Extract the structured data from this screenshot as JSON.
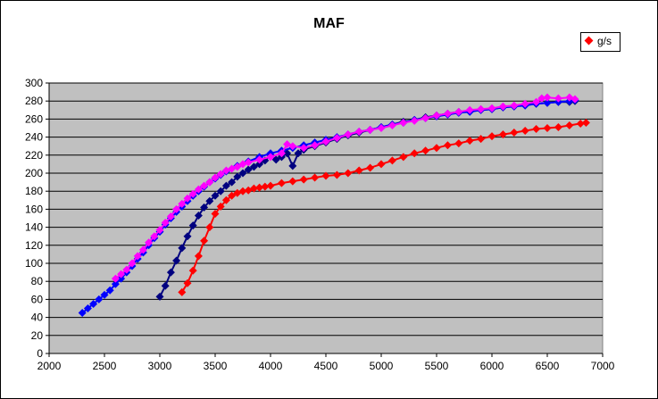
{
  "chart_data": {
    "type": "scatter",
    "title": "MAF",
    "legend": {
      "label": "g/s",
      "color": "#ff0000",
      "placement": "top-right"
    },
    "xlim": [
      2000,
      7000
    ],
    "ylim": [
      0,
      300
    ],
    "xticks": [
      "2000",
      "2500",
      "3000",
      "3500",
      "4000",
      "4500",
      "5000",
      "5500",
      "6000",
      "6500",
      "7000"
    ],
    "yticks": [
      "0",
      "20",
      "40",
      "60",
      "80",
      "100",
      "120",
      "140",
      "160",
      "180",
      "200",
      "220",
      "240",
      "260",
      "280",
      "300"
    ],
    "grid": true,
    "plot_background": "#c0c0c0",
    "series": [
      {
        "color": "#ff0000",
        "points": [
          [
            3200,
            68
          ],
          [
            3250,
            78
          ],
          [
            3300,
            92
          ],
          [
            3350,
            108
          ],
          [
            3400,
            125
          ],
          [
            3450,
            140
          ],
          [
            3500,
            155
          ],
          [
            3550,
            163
          ],
          [
            3600,
            170
          ],
          [
            3650,
            175
          ],
          [
            3700,
            178
          ],
          [
            3750,
            180
          ],
          [
            3800,
            181
          ],
          [
            3850,
            183
          ],
          [
            3900,
            184
          ],
          [
            3950,
            185
          ],
          [
            4000,
            186
          ],
          [
            4100,
            189
          ],
          [
            4200,
            191
          ],
          [
            4300,
            193
          ],
          [
            4400,
            195
          ],
          [
            4500,
            197
          ],
          [
            4600,
            198
          ],
          [
            4700,
            200
          ],
          [
            4800,
            203
          ],
          [
            4900,
            206
          ],
          [
            5000,
            210
          ],
          [
            5100,
            214
          ],
          [
            5200,
            218
          ],
          [
            5300,
            222
          ],
          [
            5400,
            225
          ],
          [
            5500,
            228
          ],
          [
            5600,
            231
          ],
          [
            5700,
            233
          ],
          [
            5800,
            236
          ],
          [
            5900,
            238
          ],
          [
            6000,
            241
          ],
          [
            6100,
            243
          ],
          [
            6200,
            245
          ],
          [
            6300,
            247
          ],
          [
            6400,
            249
          ],
          [
            6500,
            250
          ],
          [
            6600,
            251
          ],
          [
            6700,
            253
          ],
          [
            6800,
            255
          ],
          [
            6850,
            256
          ]
        ]
      },
      {
        "color": "#000080",
        "points": [
          [
            3000,
            63
          ],
          [
            3050,
            75
          ],
          [
            3100,
            90
          ],
          [
            3150,
            103
          ],
          [
            3200,
            117
          ],
          [
            3250,
            130
          ],
          [
            3300,
            142
          ],
          [
            3350,
            153
          ],
          [
            3400,
            162
          ],
          [
            3450,
            169
          ],
          [
            3500,
            175
          ],
          [
            3550,
            180
          ],
          [
            3600,
            186
          ],
          [
            3650,
            190
          ],
          [
            3700,
            196
          ],
          [
            3750,
            200
          ],
          [
            3800,
            204
          ],
          [
            3850,
            207
          ],
          [
            3900,
            210
          ],
          [
            3950,
            214
          ],
          [
            4000,
            220
          ],
          [
            4050,
            215
          ],
          [
            4100,
            218
          ],
          [
            4150,
            222
          ],
          [
            4200,
            208
          ],
          [
            4250,
            222
          ],
          [
            4300,
            226
          ],
          [
            4400,
            230
          ],
          [
            4500,
            234
          ],
          [
            4600,
            238
          ],
          [
            4700,
            242
          ],
          [
            4800,
            245
          ],
          [
            4900,
            248
          ],
          [
            5000,
            251
          ],
          [
            5100,
            254
          ],
          [
            5200,
            257
          ],
          [
            5300,
            259
          ],
          [
            5400,
            262
          ],
          [
            5500,
            264
          ],
          [
            5600,
            266
          ],
          [
            5700,
            268
          ],
          [
            5800,
            269
          ],
          [
            5900,
            270
          ],
          [
            6000,
            271
          ],
          [
            6100,
            273
          ],
          [
            6200,
            274
          ],
          [
            6300,
            276
          ],
          [
            6400,
            277
          ],
          [
            6500,
            278
          ],
          [
            6600,
            279
          ],
          [
            6700,
            279
          ],
          [
            6750,
            280
          ]
        ]
      },
      {
        "color": "#0000ff",
        "points": [
          [
            2300,
            45
          ],
          [
            2350,
            50
          ],
          [
            2400,
            55
          ],
          [
            2450,
            60
          ],
          [
            2500,
            65
          ],
          [
            2550,
            70
          ],
          [
            2600,
            77
          ],
          [
            2650,
            83
          ],
          [
            2700,
            90
          ],
          [
            2750,
            97
          ],
          [
            2800,
            105
          ],
          [
            2850,
            112
          ],
          [
            2900,
            120
          ],
          [
            2950,
            128
          ],
          [
            3000,
            135
          ],
          [
            3050,
            143
          ],
          [
            3100,
            150
          ],
          [
            3150,
            157
          ],
          [
            3200,
            163
          ],
          [
            3250,
            169
          ],
          [
            3300,
            175
          ],
          [
            3350,
            180
          ],
          [
            3400,
            185
          ],
          [
            3450,
            190
          ],
          [
            3500,
            194
          ],
          [
            3550,
            198
          ],
          [
            3600,
            202
          ],
          [
            3700,
            208
          ],
          [
            3800,
            213
          ],
          [
            3900,
            218
          ],
          [
            4000,
            222
          ],
          [
            4100,
            225
          ],
          [
            4200,
            228
          ],
          [
            4300,
            231
          ],
          [
            4400,
            234
          ],
          [
            4500,
            237
          ],
          [
            4600,
            240
          ],
          [
            4700,
            243
          ],
          [
            4800,
            246
          ],
          [
            4900,
            248
          ],
          [
            5000,
            251
          ],
          [
            5100,
            254
          ],
          [
            5200,
            256
          ],
          [
            5300,
            259
          ],
          [
            5400,
            261
          ],
          [
            5500,
            263
          ],
          [
            5600,
            265
          ],
          [
            5700,
            267
          ],
          [
            5800,
            268
          ],
          [
            5900,
            270
          ],
          [
            6000,
            271
          ],
          [
            6100,
            273
          ],
          [
            6200,
            274
          ],
          [
            6300,
            275
          ],
          [
            6400,
            277
          ],
          [
            6500,
            278
          ],
          [
            6600,
            279
          ],
          [
            6700,
            280
          ],
          [
            6750,
            281
          ]
        ]
      },
      {
        "color": "#ff00ff",
        "points": [
          [
            2600,
            83
          ],
          [
            2650,
            88
          ],
          [
            2700,
            93
          ],
          [
            2750,
            100
          ],
          [
            2800,
            108
          ],
          [
            2850,
            115
          ],
          [
            2900,
            123
          ],
          [
            2950,
            130
          ],
          [
            3000,
            137
          ],
          [
            3050,
            145
          ],
          [
            3100,
            152
          ],
          [
            3150,
            160
          ],
          [
            3200,
            166
          ],
          [
            3250,
            172
          ],
          [
            3300,
            177
          ],
          [
            3350,
            182
          ],
          [
            3400,
            186
          ],
          [
            3450,
            190
          ],
          [
            3500,
            195
          ],
          [
            3550,
            199
          ],
          [
            3600,
            203
          ],
          [
            3650,
            205
          ],
          [
            3700,
            207
          ],
          [
            3750,
            210
          ],
          [
            3800,
            212
          ],
          [
            3900,
            215
          ],
          [
            4000,
            218
          ],
          [
            4100,
            222
          ],
          [
            4150,
            232
          ],
          [
            4200,
            230
          ],
          [
            4300,
            228
          ],
          [
            4400,
            231
          ],
          [
            4500,
            235
          ],
          [
            4600,
            239
          ],
          [
            4700,
            243
          ],
          [
            4800,
            246
          ],
          [
            4900,
            248
          ],
          [
            5000,
            250
          ],
          [
            5100,
            253
          ],
          [
            5200,
            256
          ],
          [
            5300,
            258
          ],
          [
            5400,
            261
          ],
          [
            5500,
            264
          ],
          [
            5600,
            266
          ],
          [
            5700,
            268
          ],
          [
            5800,
            270
          ],
          [
            5900,
            271
          ],
          [
            6000,
            272
          ],
          [
            6100,
            274
          ],
          [
            6200,
            275
          ],
          [
            6300,
            277
          ],
          [
            6400,
            279
          ],
          [
            6450,
            283
          ],
          [
            6500,
            284
          ],
          [
            6600,
            283
          ],
          [
            6700,
            284
          ],
          [
            6750,
            282
          ]
        ]
      }
    ]
  }
}
